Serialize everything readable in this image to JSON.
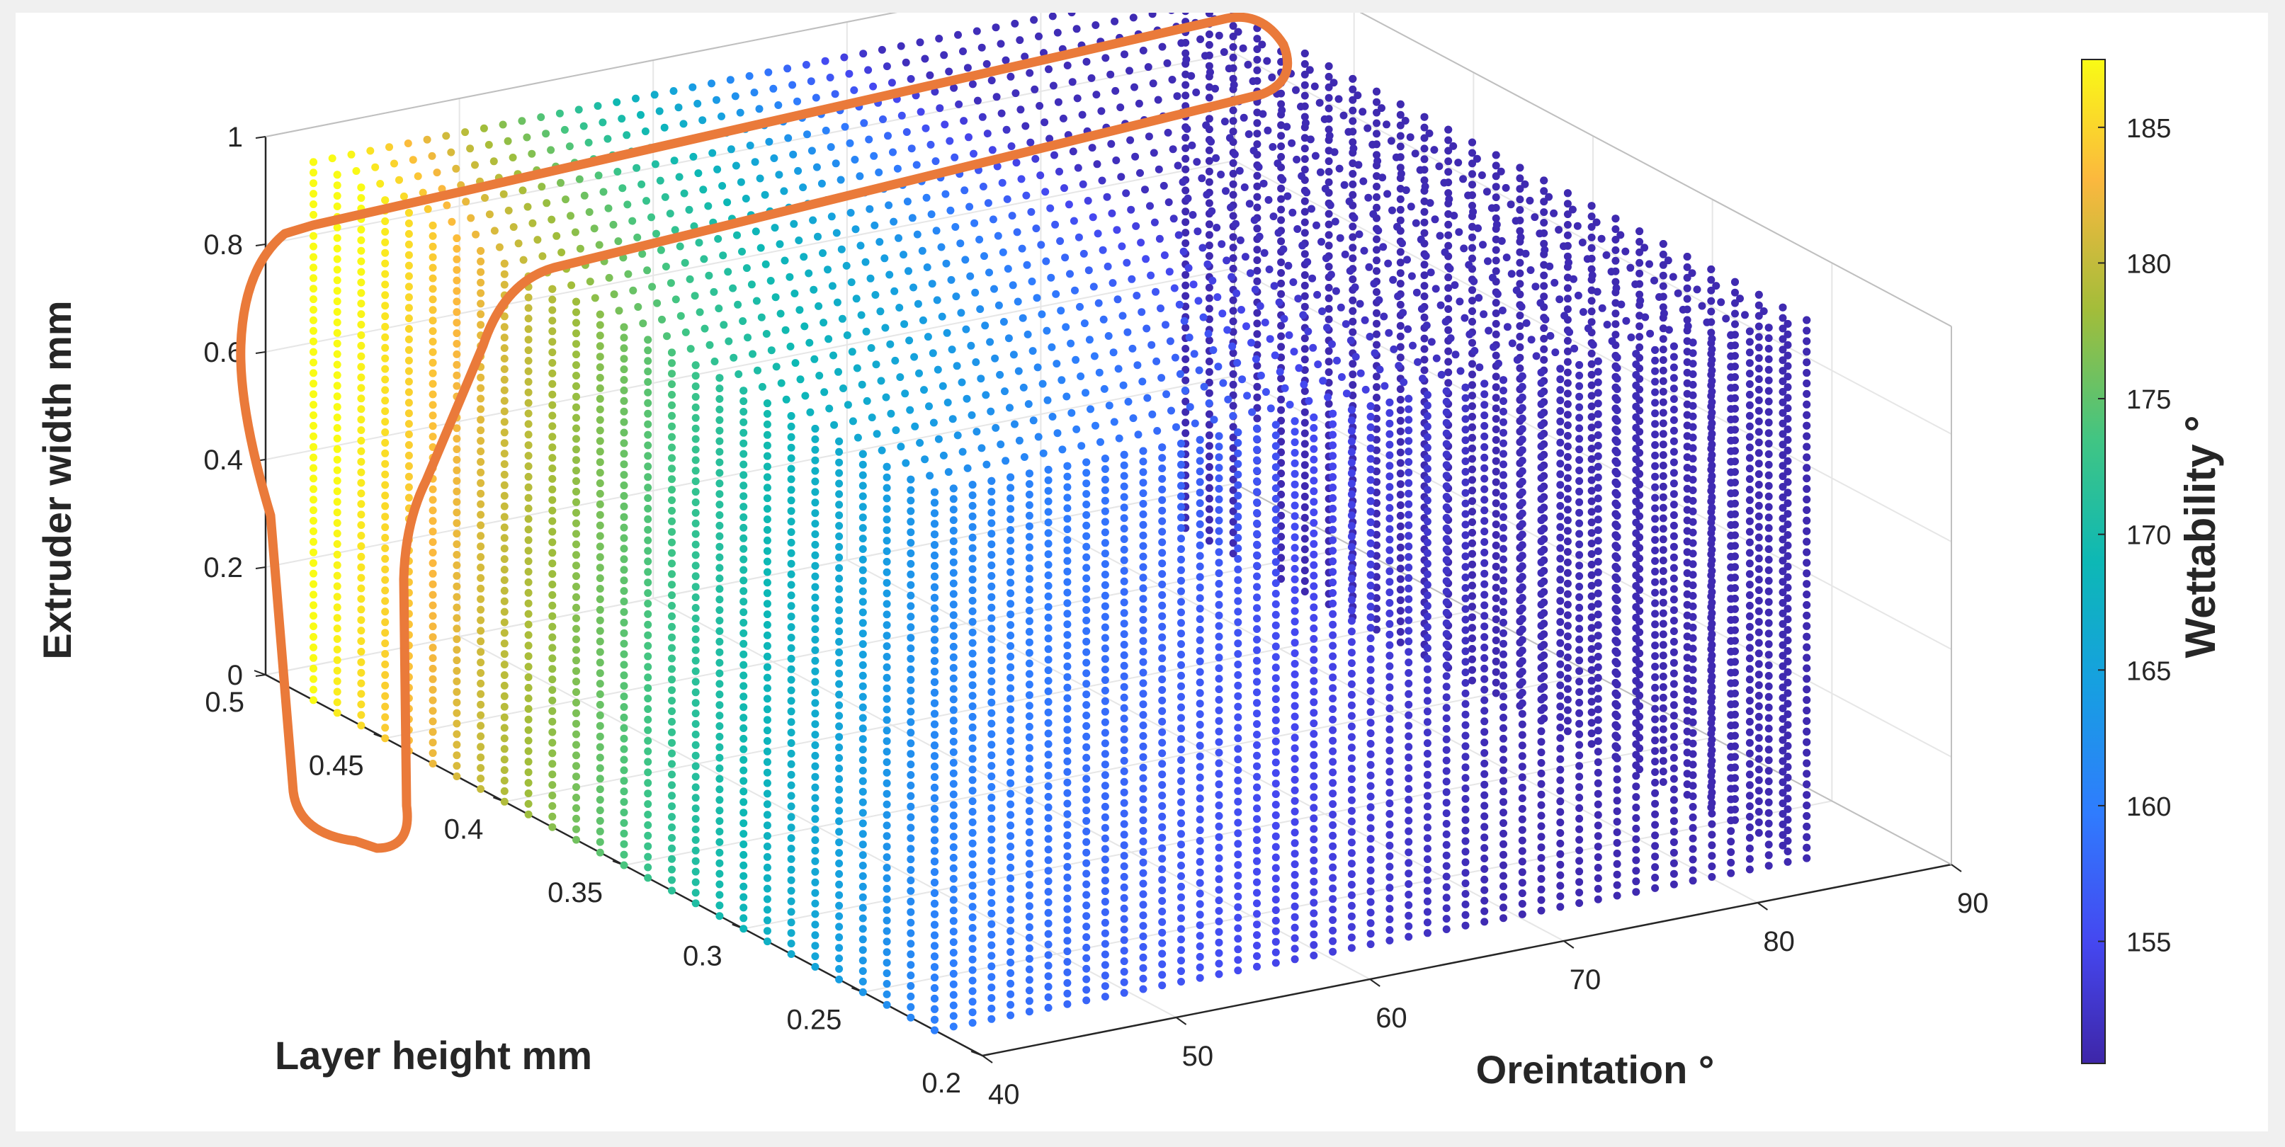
{
  "chart_data": {
    "type": "scatter3d",
    "title": "",
    "xlabel": "Oreintation °",
    "ylabel": "Layer height mm",
    "zlabel": "Extruder width mm",
    "colorbar_label": "Wettability °",
    "x_ticks": [
      "40",
      "50",
      "60",
      "70",
      "80",
      "90"
    ],
    "y_ticks": [
      "0.2",
      "0.25",
      "0.3",
      "0.35",
      "0.4",
      "0.45",
      "0.5"
    ],
    "z_ticks": [
      "0",
      "0.2",
      "0.4",
      "0.6",
      "0.8",
      "1"
    ],
    "colorbar_ticks": [
      "155",
      "160",
      "165",
      "170",
      "175",
      "180",
      "185"
    ],
    "xlim": [
      40,
      90
    ],
    "ylim": [
      0.2,
      0.5
    ],
    "zlim": [
      0,
      1
    ],
    "clim": [
      150.5,
      187.5
    ],
    "grid": true,
    "domain": {
      "orientation": [
        40,
        85
      ],
      "layer_height": [
        0.22,
        0.48
      ],
      "extruder_width": [
        0,
        1
      ]
    },
    "wettability_model": {
      "description": "Wettability is highest (~187) at orientation 40° with layer height near 0.48 mm, decreasing toward ~151 at high orientation / low layer height",
      "max": 187.5,
      "min": 151
    },
    "highlight": {
      "description": "Orange hand-drawn outline enclosing the high-wettability region",
      "color": "#ea7a3a"
    }
  }
}
